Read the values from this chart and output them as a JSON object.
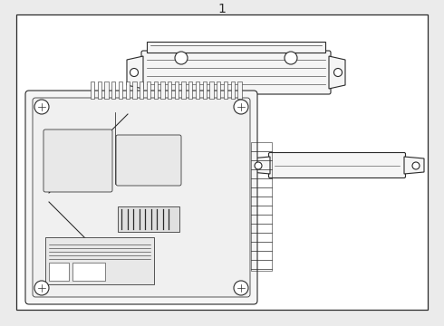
{
  "title": "1",
  "bg_color": "#ebebeb",
  "box_color": "#ffffff",
  "line_color": "#2a2a2a",
  "rib_color": "#555555",
  "fill_color": "#f5f5f5",
  "fig_width": 4.9,
  "fig_height": 3.6,
  "dpi": 100
}
